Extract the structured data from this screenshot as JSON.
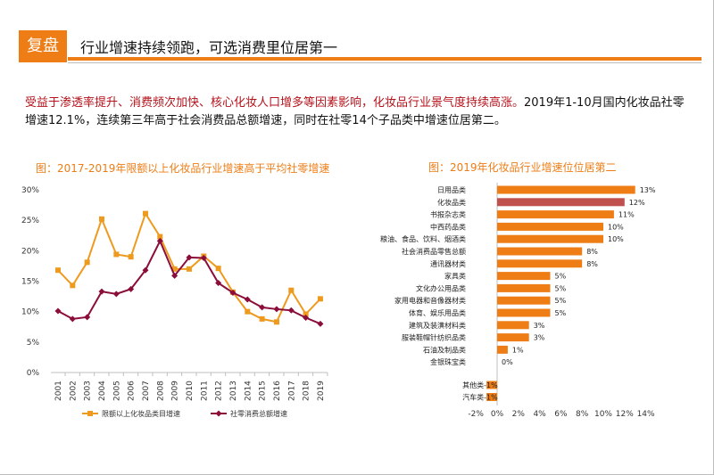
{
  "header": {
    "tag": "复盘",
    "title": "行业增速持续领跑，可选消费里位居第一"
  },
  "summary": {
    "line1": "受益于渗透率提升、消费频次加快、核心化妆人口增多等因素影响，化妆品行业景气度持续高涨。",
    "line2": "2019年1-10月国内化妆品社零增速12.1%，连续第三年高于社会消费品总额增速，同时在社零14个子品类中增速位居第二。"
  },
  "colors": {
    "accent": "#ee7d16",
    "highlight_bar": "#c0504d",
    "line_retail": "#8b0d3a",
    "summary_red": "#b5121b"
  },
  "chart_data": [
    {
      "type": "line",
      "title": "图：2017-2019年限额以上化妆品行业增速高于平均社零增速",
      "x": [
        "2001",
        "2002",
        "2003",
        "2004",
        "2005",
        "2006",
        "2007",
        "2008",
        "2009",
        "2010",
        "2011",
        "2012",
        "2013",
        "2014",
        "2015",
        "2016",
        "2017",
        "2018",
        "2019"
      ],
      "series": [
        {
          "name": "限额以上化妆品类目增速",
          "marker": "square",
          "color": "#ee9a1e",
          "values": [
            16.8,
            14.3,
            18.1,
            25.2,
            19.4,
            19.0,
            26.1,
            22.3,
            17.0,
            17.0,
            19.1,
            17.1,
            13.2,
            10.0,
            8.8,
            8.3,
            13.5,
            9.6,
            12.1
          ]
        },
        {
          "name": "社零消费总额增速",
          "marker": "diamond",
          "color": "#8b0d3a",
          "values": [
            10.1,
            8.8,
            9.1,
            13.3,
            12.9,
            13.7,
            16.8,
            21.6,
            15.9,
            18.9,
            18.8,
            14.7,
            13.1,
            12.0,
            10.7,
            10.4,
            10.2,
            9.0,
            8.0
          ]
        }
      ],
      "y_ticks": [
        "0%",
        "5%",
        "10%",
        "15%",
        "20%",
        "25%",
        "30%"
      ],
      "ylim": [
        0,
        30
      ],
      "grid": false,
      "legend": "bottom"
    },
    {
      "type": "bar",
      "orientation": "horizontal",
      "title": "图：2019年化妆品行业增速位位居第二",
      "categories": [
        "日用品类",
        "化妆品类",
        "书报杂志类",
        "中西药品类",
        "粮油、食品、饮料、烟酒类",
        "社会消费品零售总额",
        "通讯器材类",
        "家具类",
        "文化办公用品类",
        "家用电器和音像器材类",
        "体育、娱乐用品类",
        "建筑及装潢材料类",
        "服装鞋帽针纺织品类",
        "石油及制品类",
        "金银珠宝类",
        "其他类",
        "汽车类"
      ],
      "values": [
        13,
        12,
        11,
        10,
        10,
        8,
        8,
        5,
        5,
        5,
        5,
        3,
        3,
        1,
        0,
        -1,
        -1
      ],
      "labels": [
        "13%",
        "12%",
        "11%",
        "10%",
        "10%",
        "8%",
        "8%",
        "5%",
        "5%",
        "5%",
        "5%",
        "3%",
        "3%",
        "1%",
        "0%",
        "-1%",
        "-1%"
      ],
      "highlight": "化妆品类",
      "x_ticks": [
        "-2%",
        "0%",
        "2%",
        "4%",
        "6%",
        "8%",
        "10%",
        "12%",
        "14%"
      ],
      "xlim": [
        -2,
        14
      ],
      "grid": false
    }
  ]
}
